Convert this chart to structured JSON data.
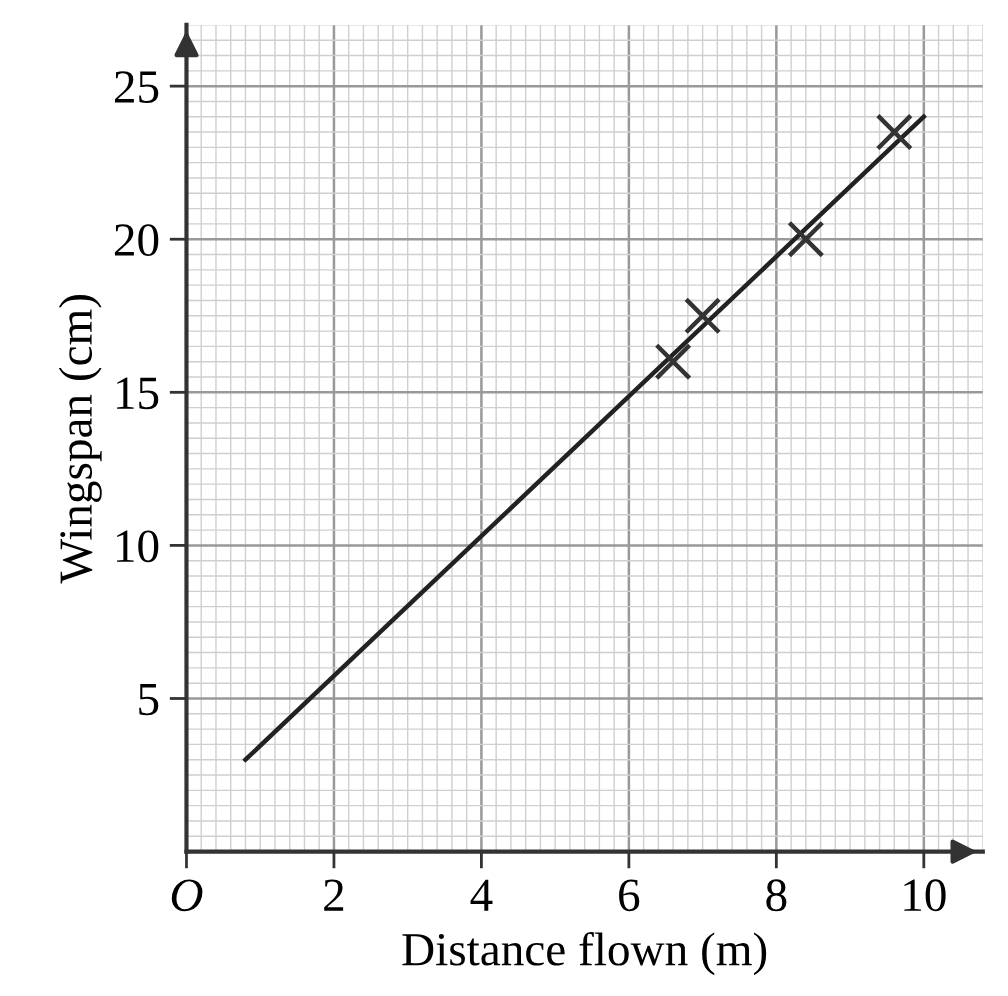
{
  "chart_data": {
    "type": "scatter",
    "xlabel": "Distance flown (m)",
    "ylabel": "Wingspan (cm)",
    "xlim": [
      0,
      10.8
    ],
    "ylim": [
      0,
      27
    ],
    "xticks": [
      {
        "value": 0,
        "label": "O"
      },
      2,
      4,
      6,
      8,
      10
    ],
    "yticks": [
      5,
      10,
      15,
      20,
      25
    ],
    "grid": true,
    "series": [
      {
        "type": "scatter",
        "marker": "cross",
        "color": "#333333",
        "x": [
          6.6,
          7,
          8.4,
          9.6
        ],
        "values": [
          16,
          17.5,
          20,
          23.5
        ]
      },
      {
        "type": "line",
        "marker": "none",
        "color": "#222222",
        "x": [
          0.8,
          10
        ],
        "values": [
          3,
          24
        ]
      }
    ]
  }
}
